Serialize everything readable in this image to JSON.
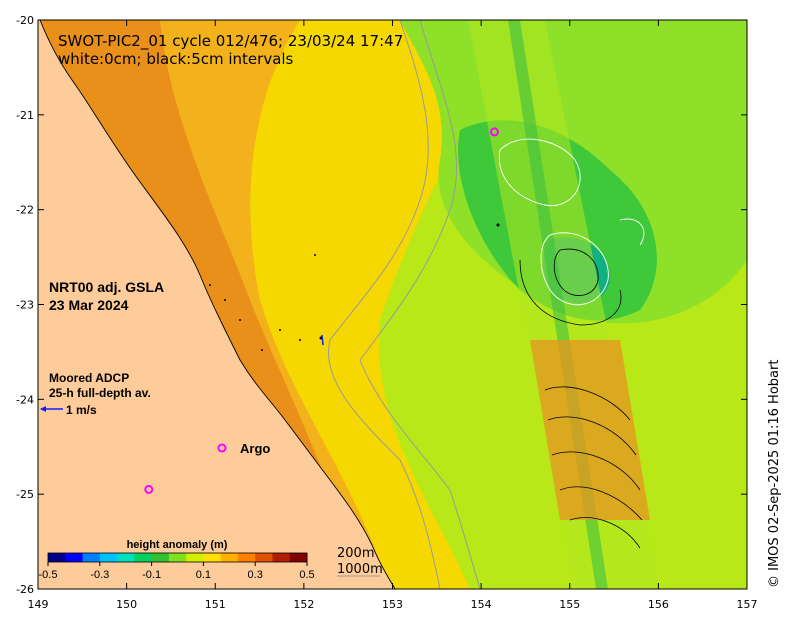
{
  "title": {
    "line1": "SWOT-PIC2_01 cycle 012/476; 23/03/24 17:47",
    "line2": "white:0cm; black:5cm intervals"
  },
  "product": {
    "line1": "NRT00 adj. GSLA",
    "line2": "23 Mar 2024"
  },
  "adcp": {
    "line1": "Moored ADCP",
    "line2": "25-h full-depth av.",
    "scale_label": "1 m/s",
    "arrow_color": "#1a1aff"
  },
  "argo": {
    "label": "Argo",
    "marker": "o",
    "color": "#ff00ff"
  },
  "axes": {
    "x_ticks": [
      "149",
      "150",
      "151",
      "152",
      "153",
      "154",
      "155",
      "156",
      "157"
    ],
    "y_ticks": [
      "-20",
      "-21",
      "-22",
      "-23",
      "-24",
      "-25",
      "-26"
    ],
    "xlim": [
      149,
      157
    ],
    "ylim": [
      -26,
      -20
    ]
  },
  "colorbar": {
    "title": "height anomaly (m)",
    "ticks": [
      "-0.5",
      "-0.3",
      "-0.1",
      "0.1",
      "0.3",
      "0.5"
    ],
    "range": [
      -0.5,
      0.5
    ],
    "colors": [
      "#00008b",
      "#0000ff",
      "#0080ff",
      "#00c0ff",
      "#00e0c0",
      "#00d060",
      "#30c030",
      "#80e020",
      "#d0f000",
      "#ffe000",
      "#ffb000",
      "#ff8000",
      "#e05000",
      "#b02000",
      "#800000"
    ]
  },
  "isobaths": {
    "line1": "200m",
    "line2": "1000m"
  },
  "credit": "© IMOS 02-Sep-2025 01:16 Hobart",
  "colors": {
    "land": "#fdcc9a",
    "shelf_orange": "#f0a020",
    "coastal_orange": "#e88a18",
    "yellow": "#f5d800",
    "light_green": "#c8ee10",
    "green": "#80dd20",
    "deep_green": "#30c840",
    "argo_magenta": "#ff00ff"
  }
}
